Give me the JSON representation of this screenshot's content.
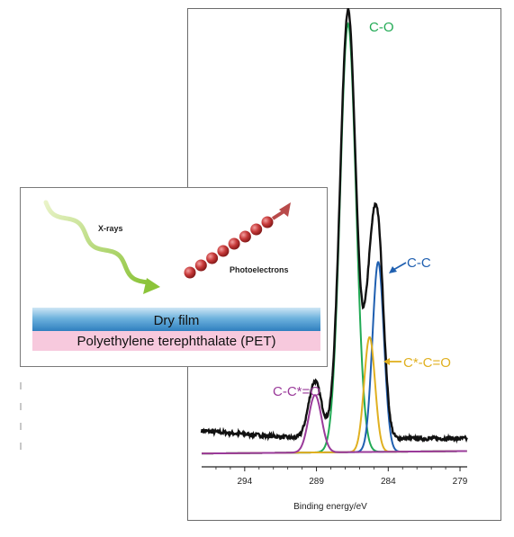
{
  "chart_data": {
    "type": "line",
    "xlabel": "Binding energy/eV",
    "x_reversed": true,
    "xlim": [
      297,
      278.5
    ],
    "ylim": [
      0,
      100
    ],
    "x_ticks": [
      294,
      289,
      284,
      279
    ],
    "grid": false,
    "baseline": 3,
    "envelope_color": "#111111",
    "components": [
      {
        "label": "C-O",
        "center": 286.8,
        "height": 97,
        "sigma": 0.55,
        "color": "#22aa55"
      },
      {
        "label": "C-C",
        "center": 284.7,
        "height": 43,
        "sigma": 0.4,
        "color": "#1f5fb0"
      },
      {
        "label": "C*-C=O",
        "center": 285.3,
        "height": 26,
        "sigma": 0.38,
        "color": "#e0b020"
      },
      {
        "label": "C-C*=O",
        "center": 289.1,
        "height": 13,
        "sigma": 0.45,
        "color": "#9a3a9a"
      }
    ]
  },
  "inset": {
    "xrays_label": "X-rays",
    "photoelectrons_label": "Photoelectrons",
    "dry_film_label": "Dry film",
    "substrate_label": "Polyethylene terephthalate (PET)"
  }
}
